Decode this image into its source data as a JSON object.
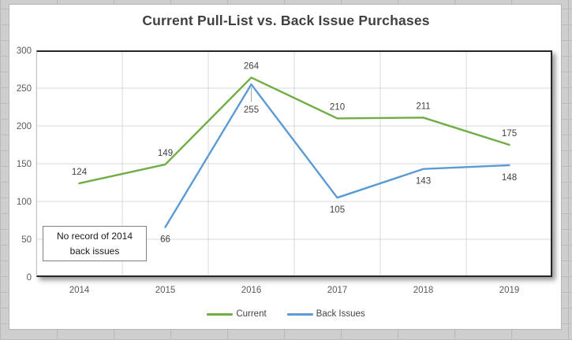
{
  "chart": {
    "title": "Current Pull-List vs. Back Issue Purchases"
  },
  "annotation": {
    "line1": "No record of 2014",
    "line2": "back issues",
    "full_text": "No record of 2014 back issues"
  },
  "chart_data": {
    "type": "line",
    "title": "Current Pull-List vs. Back Issue Purchases",
    "categories": [
      "2014",
      "2015",
      "2016",
      "2017",
      "2018",
      "2019"
    ],
    "series": [
      {
        "name": "Current",
        "color": "#70AD47",
        "values": [
          124,
          149,
          264,
          210,
          211,
          175
        ],
        "label_position": "above"
      },
      {
        "name": "Back Issues",
        "color": "#5B9BD5",
        "values": [
          null,
          66,
          255,
          105,
          143,
          148
        ],
        "label_position": "below",
        "leader_index": 2
      }
    ],
    "xlabel": "",
    "ylabel": "",
    "ylim": [
      0,
      300
    ],
    "yticks": [
      0,
      50,
      100,
      150,
      200,
      250,
      300
    ],
    "grid": true,
    "gridline_color": "#D9D9D9",
    "leader_line_color": "#A6A6A6",
    "legend_position": "bottom",
    "annotation": "No record of 2014 back issues"
  }
}
